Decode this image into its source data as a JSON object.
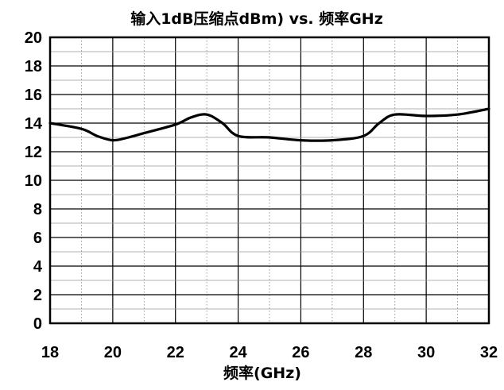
{
  "chart_data": {
    "type": "line",
    "title": "输入1dB压缩点dBm) vs. 频率GHz",
    "xlabel": "频率(GHz)",
    "ylabel": "",
    "xlim": [
      18,
      32
    ],
    "ylim": [
      0,
      20
    ],
    "x_major_ticks": [
      18,
      20,
      22,
      24,
      26,
      28,
      30,
      32
    ],
    "x_tick_labels": [
      "18",
      "20",
      "22",
      "24",
      "26",
      "28",
      "30",
      "32"
    ],
    "x_minor_step": 1,
    "y_major_ticks": [
      0,
      2,
      4,
      6,
      8,
      10,
      12,
      14,
      16,
      18,
      20
    ],
    "y_tick_labels": [
      "0",
      "2",
      "4",
      "6",
      "8",
      "10",
      "12",
      "14",
      "16",
      "18",
      "20"
    ],
    "y_minor_step": 1,
    "grid": true,
    "legend": "none",
    "series": [
      {
        "color": "#000000",
        "x": [
          18,
          19,
          19.5,
          20,
          20.5,
          21,
          22,
          22.5,
          23,
          23.5,
          24,
          25,
          26,
          27,
          28,
          28.5,
          29,
          30,
          31,
          32
        ],
        "y": [
          14.0,
          13.6,
          13.1,
          12.8,
          13.0,
          13.3,
          13.9,
          14.4,
          14.6,
          14.0,
          13.1,
          13.0,
          12.8,
          12.8,
          13.1,
          14.0,
          14.6,
          14.5,
          14.6,
          15.0
        ]
      }
    ]
  }
}
